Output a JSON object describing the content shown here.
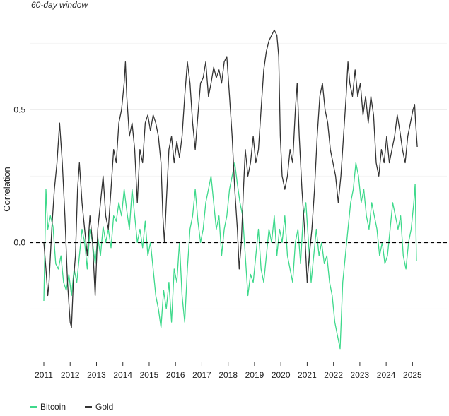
{
  "chart_data": {
    "type": "line",
    "subtitle": "60-day window",
    "ylabel": "Correlation",
    "xlabel": "",
    "xlim": [
      2011.0,
      2025.5
    ],
    "ylim": [
      -0.43,
      0.82
    ],
    "x_ticks": [
      "2011",
      "2012",
      "2013",
      "2014",
      "2015",
      "2016",
      "2017",
      "2018",
      "2019",
      "2020",
      "2021",
      "2022",
      "2023",
      "2024",
      "2025"
    ],
    "y_ticks": [
      {
        "value": 0.0,
        "label": "0.0"
      },
      {
        "value": 0.5,
        "label": "0.5"
      }
    ],
    "minor_grid_y": [
      -0.25,
      0.25,
      0.75
    ],
    "reference_line": {
      "y": 0.0,
      "style": "dashed"
    },
    "grid": true,
    "legend_placement": "bottom-left",
    "series": [
      {
        "name": "Bitcoin",
        "color": "#3ed98b",
        "points": [
          [
            2011.0,
            -0.22
          ],
          [
            2011.08,
            0.2
          ],
          [
            2011.15,
            0.05
          ],
          [
            2011.25,
            0.1
          ],
          [
            2011.35,
            0.06
          ],
          [
            2011.45,
            -0.08
          ],
          [
            2011.55,
            -0.1
          ],
          [
            2011.65,
            -0.05
          ],
          [
            2011.75,
            -0.15
          ],
          [
            2011.85,
            -0.18
          ],
          [
            2011.95,
            -0.12
          ],
          [
            2012.05,
            -0.2
          ],
          [
            2012.15,
            -0.1
          ],
          [
            2012.25,
            -0.15
          ],
          [
            2012.35,
            -0.05
          ],
          [
            2012.45,
            0.05
          ],
          [
            2012.55,
            0.0
          ],
          [
            2012.65,
            -0.1
          ],
          [
            2012.75,
            0.05
          ],
          [
            2012.85,
            0.0
          ],
          [
            2012.95,
            -0.08
          ],
          [
            2013.05,
            0.02
          ],
          [
            2013.15,
            -0.05
          ],
          [
            2013.25,
            0.06
          ],
          [
            2013.35,
            0.0
          ],
          [
            2013.45,
            0.05
          ],
          [
            2013.55,
            -0.02
          ],
          [
            2013.65,
            0.1
          ],
          [
            2013.75,
            0.08
          ],
          [
            2013.85,
            0.15
          ],
          [
            2013.95,
            0.1
          ],
          [
            2014.05,
            0.2
          ],
          [
            2014.15,
            0.12
          ],
          [
            2014.25,
            0.05
          ],
          [
            2014.35,
            0.2
          ],
          [
            2014.45,
            0.1
          ],
          [
            2014.55,
            0.0
          ],
          [
            2014.65,
            0.05
          ],
          [
            2014.75,
            -0.02
          ],
          [
            2014.85,
            0.08
          ],
          [
            2014.95,
            -0.05
          ],
          [
            2015.05,
            0.0
          ],
          [
            2015.15,
            -0.1
          ],
          [
            2015.25,
            -0.2
          ],
          [
            2015.35,
            -0.25
          ],
          [
            2015.45,
            -0.32
          ],
          [
            2015.55,
            -0.18
          ],
          [
            2015.65,
            -0.25
          ],
          [
            2015.75,
            -0.15
          ],
          [
            2015.85,
            -0.3
          ],
          [
            2015.95,
            -0.1
          ],
          [
            2016.05,
            -0.15
          ],
          [
            2016.15,
            0.0
          ],
          [
            2016.25,
            -0.2
          ],
          [
            2016.35,
            -0.3
          ],
          [
            2016.45,
            -0.1
          ],
          [
            2016.55,
            0.05
          ],
          [
            2016.65,
            0.1
          ],
          [
            2016.75,
            0.2
          ],
          [
            2016.85,
            0.08
          ],
          [
            2016.95,
            0.0
          ],
          [
            2017.05,
            0.05
          ],
          [
            2017.15,
            0.15
          ],
          [
            2017.25,
            0.2
          ],
          [
            2017.35,
            0.25
          ],
          [
            2017.45,
            0.15
          ],
          [
            2017.55,
            0.05
          ],
          [
            2017.65,
            0.1
          ],
          [
            2017.75,
            -0.05
          ],
          [
            2017.85,
            0.05
          ],
          [
            2017.95,
            0.1
          ],
          [
            2018.05,
            0.2
          ],
          [
            2018.15,
            0.25
          ],
          [
            2018.25,
            0.3
          ],
          [
            2018.35,
            0.22
          ],
          [
            2018.45,
            0.15
          ],
          [
            2018.55,
            0.1
          ],
          [
            2018.65,
            -0.05
          ],
          [
            2018.75,
            -0.2
          ],
          [
            2018.85,
            -0.12
          ],
          [
            2018.95,
            -0.15
          ],
          [
            2019.05,
            -0.05
          ],
          [
            2019.15,
            0.05
          ],
          [
            2019.25,
            -0.1
          ],
          [
            2019.35,
            -0.15
          ],
          [
            2019.45,
            -0.05
          ],
          [
            2019.55,
            0.05
          ],
          [
            2019.65,
            0.0
          ],
          [
            2019.75,
            0.1
          ],
          [
            2019.85,
            -0.05
          ],
          [
            2019.95,
            0.05
          ],
          [
            2020.05,
            0.0
          ],
          [
            2020.15,
            0.1
          ],
          [
            2020.25,
            -0.05
          ],
          [
            2020.35,
            -0.1
          ],
          [
            2020.45,
            -0.15
          ],
          [
            2020.55,
            0.0
          ],
          [
            2020.65,
            0.05
          ],
          [
            2020.75,
            -0.08
          ],
          [
            2020.85,
            0.1
          ],
          [
            2020.95,
            0.15
          ],
          [
            2021.05,
            0.0
          ],
          [
            2021.15,
            -0.15
          ],
          [
            2021.25,
            -0.05
          ],
          [
            2021.35,
            0.05
          ],
          [
            2021.45,
            -0.05
          ],
          [
            2021.55,
            0.0
          ],
          [
            2021.65,
            -0.08
          ],
          [
            2021.75,
            -0.05
          ],
          [
            2021.85,
            -0.15
          ],
          [
            2021.95,
            -0.2
          ],
          [
            2022.05,
            -0.3
          ],
          [
            2022.15,
            -0.35
          ],
          [
            2022.25,
            -0.4
          ],
          [
            2022.35,
            -0.15
          ],
          [
            2022.45,
            -0.05
          ],
          [
            2022.55,
            0.05
          ],
          [
            2022.65,
            0.15
          ],
          [
            2022.75,
            0.2
          ],
          [
            2022.85,
            0.3
          ],
          [
            2022.95,
            0.25
          ],
          [
            2023.05,
            0.15
          ],
          [
            2023.15,
            0.2
          ],
          [
            2023.25,
            0.1
          ],
          [
            2023.35,
            0.05
          ],
          [
            2023.45,
            0.15
          ],
          [
            2023.55,
            0.1
          ],
          [
            2023.65,
            0.05
          ],
          [
            2023.75,
            -0.05
          ],
          [
            2023.85,
            0.0
          ],
          [
            2023.95,
            -0.08
          ],
          [
            2024.05,
            -0.05
          ],
          [
            2024.15,
            0.05
          ],
          [
            2024.25,
            0.15
          ],
          [
            2024.35,
            0.1
          ],
          [
            2024.45,
            0.05
          ],
          [
            2024.55,
            0.1
          ],
          [
            2024.65,
            -0.05
          ],
          [
            2024.75,
            -0.1
          ],
          [
            2024.85,
            0.0
          ],
          [
            2024.95,
            0.05
          ],
          [
            2025.05,
            0.15
          ],
          [
            2025.1,
            0.22
          ],
          [
            2025.15,
            -0.07
          ]
        ]
      },
      {
        "name": "Gold",
        "color": "#333333",
        "points": [
          [
            2011.0,
            0.0
          ],
          [
            2011.08,
            -0.1
          ],
          [
            2011.15,
            -0.2
          ],
          [
            2011.2,
            -0.15
          ],
          [
            2011.3,
            0.05
          ],
          [
            2011.4,
            0.2
          ],
          [
            2011.5,
            0.3
          ],
          [
            2011.6,
            0.45
          ],
          [
            2011.7,
            0.3
          ],
          [
            2011.8,
            0.1
          ],
          [
            2011.9,
            -0.15
          ],
          [
            2012.0,
            -0.3
          ],
          [
            2012.05,
            -0.32
          ],
          [
            2012.12,
            -0.15
          ],
          [
            2012.2,
            -0.05
          ],
          [
            2012.28,
            0.2
          ],
          [
            2012.35,
            0.3
          ],
          [
            2012.45,
            0.15
          ],
          [
            2012.55,
            0.05
          ],
          [
            2012.65,
            -0.05
          ],
          [
            2012.75,
            0.1
          ],
          [
            2012.85,
            0.0
          ],
          [
            2012.95,
            -0.2
          ],
          [
            2013.05,
            0.05
          ],
          [
            2013.15,
            0.15
          ],
          [
            2013.25,
            0.25
          ],
          [
            2013.35,
            0.1
          ],
          [
            2013.45,
            0.05
          ],
          [
            2013.55,
            0.2
          ],
          [
            2013.65,
            0.35
          ],
          [
            2013.75,
            0.3
          ],
          [
            2013.85,
            0.45
          ],
          [
            2013.95,
            0.5
          ],
          [
            2014.05,
            0.6
          ],
          [
            2014.1,
            0.68
          ],
          [
            2014.15,
            0.55
          ],
          [
            2014.25,
            0.4
          ],
          [
            2014.35,
            0.45
          ],
          [
            2014.45,
            0.35
          ],
          [
            2014.55,
            0.15
          ],
          [
            2014.65,
            0.35
          ],
          [
            2014.75,
            0.3
          ],
          [
            2014.85,
            0.45
          ],
          [
            2014.95,
            0.48
          ],
          [
            2015.05,
            0.42
          ],
          [
            2015.15,
            0.48
          ],
          [
            2015.25,
            0.45
          ],
          [
            2015.35,
            0.4
          ],
          [
            2015.45,
            0.3
          ],
          [
            2015.52,
            0.1
          ],
          [
            2015.58,
            0.0
          ],
          [
            2015.65,
            0.15
          ],
          [
            2015.75,
            0.35
          ],
          [
            2015.85,
            0.4
          ],
          [
            2015.95,
            0.3
          ],
          [
            2016.05,
            0.38
          ],
          [
            2016.15,
            0.32
          ],
          [
            2016.25,
            0.4
          ],
          [
            2016.35,
            0.55
          ],
          [
            2016.45,
            0.68
          ],
          [
            2016.55,
            0.6
          ],
          [
            2016.65,
            0.45
          ],
          [
            2016.75,
            0.35
          ],
          [
            2016.85,
            0.48
          ],
          [
            2016.95,
            0.6
          ],
          [
            2017.05,
            0.62
          ],
          [
            2017.15,
            0.68
          ],
          [
            2017.25,
            0.55
          ],
          [
            2017.35,
            0.6
          ],
          [
            2017.45,
            0.66
          ],
          [
            2017.55,
            0.62
          ],
          [
            2017.65,
            0.65
          ],
          [
            2017.75,
            0.6
          ],
          [
            2017.85,
            0.68
          ],
          [
            2017.95,
            0.7
          ],
          [
            2018.05,
            0.55
          ],
          [
            2018.15,
            0.4
          ],
          [
            2018.25,
            0.2
          ],
          [
            2018.35,
            0.05
          ],
          [
            2018.42,
            -0.1
          ],
          [
            2018.5,
            0.0
          ],
          [
            2018.58,
            0.2
          ],
          [
            2018.65,
            0.35
          ],
          [
            2018.75,
            0.25
          ],
          [
            2018.85,
            0.3
          ],
          [
            2018.95,
            0.4
          ],
          [
            2019.05,
            0.3
          ],
          [
            2019.15,
            0.35
          ],
          [
            2019.25,
            0.5
          ],
          [
            2019.35,
            0.65
          ],
          [
            2019.45,
            0.72
          ],
          [
            2019.55,
            0.76
          ],
          [
            2019.65,
            0.78
          ],
          [
            2019.75,
            0.8
          ],
          [
            2019.85,
            0.78
          ],
          [
            2019.92,
            0.7
          ],
          [
            2019.98,
            0.4
          ],
          [
            2020.05,
            0.25
          ],
          [
            2020.15,
            0.2
          ],
          [
            2020.25,
            0.25
          ],
          [
            2020.35,
            0.35
          ],
          [
            2020.45,
            0.3
          ],
          [
            2020.55,
            0.5
          ],
          [
            2020.62,
            0.6
          ],
          [
            2020.7,
            0.4
          ],
          [
            2020.8,
            0.2
          ],
          [
            2020.9,
            0.05
          ],
          [
            2021.0,
            -0.15
          ],
          [
            2021.08,
            -0.05
          ],
          [
            2021.18,
            0.05
          ],
          [
            2021.28,
            0.2
          ],
          [
            2021.38,
            0.4
          ],
          [
            2021.48,
            0.55
          ],
          [
            2021.58,
            0.6
          ],
          [
            2021.68,
            0.5
          ],
          [
            2021.78,
            0.45
          ],
          [
            2021.88,
            0.35
          ],
          [
            2021.98,
            0.3
          ],
          [
            2022.08,
            0.25
          ],
          [
            2022.18,
            0.15
          ],
          [
            2022.28,
            0.25
          ],
          [
            2022.38,
            0.4
          ],
          [
            2022.48,
            0.55
          ],
          [
            2022.55,
            0.68
          ],
          [
            2022.62,
            0.6
          ],
          [
            2022.72,
            0.55
          ],
          [
            2022.82,
            0.65
          ],
          [
            2022.92,
            0.55
          ],
          [
            2023.02,
            0.6
          ],
          [
            2023.12,
            0.48
          ],
          [
            2023.22,
            0.55
          ],
          [
            2023.32,
            0.45
          ],
          [
            2023.42,
            0.55
          ],
          [
            2023.52,
            0.48
          ],
          [
            2023.62,
            0.3
          ],
          [
            2023.72,
            0.25
          ],
          [
            2023.82,
            0.35
          ],
          [
            2023.92,
            0.3
          ],
          [
            2024.02,
            0.4
          ],
          [
            2024.12,
            0.3
          ],
          [
            2024.22,
            0.35
          ],
          [
            2024.32,
            0.4
          ],
          [
            2024.42,
            0.48
          ],
          [
            2024.52,
            0.42
          ],
          [
            2024.62,
            0.35
          ],
          [
            2024.72,
            0.3
          ],
          [
            2024.82,
            0.4
          ],
          [
            2024.92,
            0.45
          ],
          [
            2025.02,
            0.5
          ],
          [
            2025.08,
            0.52
          ],
          [
            2025.12,
            0.45
          ],
          [
            2025.18,
            0.36
          ]
        ]
      }
    ]
  }
}
